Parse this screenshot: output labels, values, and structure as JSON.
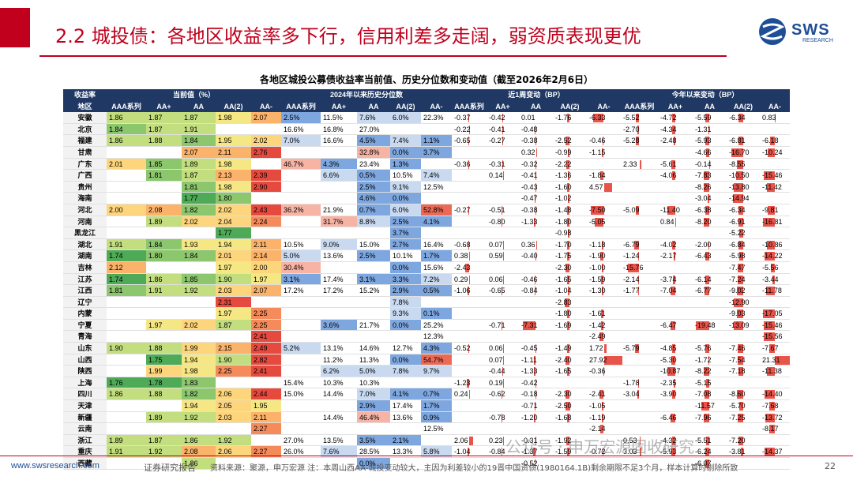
{
  "header": {
    "title": "2.2 城投债：各地区收益率多下行，信用利差多走阔，弱资质表现更优",
    "logo_text": "SWS",
    "logo_sub": "RESEARCH"
  },
  "table_title": "各地区城投公募债收益率当前值、历史分位数和变动值（截至2026年2月6日）",
  "group_headers": [
    "收益率",
    "当前值（%）",
    "2024年以来历史分位数",
    "近1周变动（BP）",
    "今年以来变动（BP）"
  ],
  "col_headers": [
    "地区",
    "AAA系列",
    "AA+",
    "AA",
    "AA(2)",
    "AA-",
    "AAA系列",
    "AA+",
    "AA",
    "AA(2)",
    "AA-",
    "AAA系列",
    "AA+",
    "AA",
    "AA(2)",
    "AA-",
    "AAA系列",
    "AA+",
    "AA",
    "AA(2)",
    "AA-"
  ],
  "rows": [
    {
      "region": "安徽",
      "cur": [
        "1.86",
        "1.87",
        "1.87",
        "1.98",
        "2.07"
      ],
      "pct": [
        "2.5%",
        "11.5%",
        "7.6%",
        "6.0%",
        "22.3%"
      ],
      "wk": [
        "-0.37",
        "-0.42",
        "0.01",
        "-1.76",
        "-6.33"
      ],
      "ytd": [
        "-5.52",
        "-4.72",
        "-5.59",
        "-6.34",
        "0.83"
      ]
    },
    {
      "region": "北京",
      "cur": [
        "1.84",
        "1.87",
        "1.91",
        "",
        ""
      ],
      "pct": [
        "16.6%",
        "16.8%",
        "27.0%",
        "",
        ""
      ],
      "wk": [
        "-0.22",
        "-0.41",
        "-0.48",
        "",
        ""
      ],
      "ytd": [
        "-2.70",
        "-4.34",
        "-1.31",
        "",
        ""
      ]
    },
    {
      "region": "福建",
      "cur": [
        "1.86",
        "1.88",
        "1.84",
        "1.95",
        "2.02"
      ],
      "pct": [
        "7.0%",
        "16.6%",
        "4.5%",
        "7.4%",
        "1.1%"
      ],
      "wk": [
        "-0.65",
        "-0.27",
        "-0.38",
        "-2.52",
        "-0.46"
      ],
      "ytd": [
        "-5.28",
        "-2.48",
        "-5.93",
        "-6.81",
        "-6.18"
      ]
    },
    {
      "region": "甘肃",
      "cur": [
        "",
        "",
        "2.07",
        "2.11",
        "2.76"
      ],
      "pct": [
        "",
        "",
        "32.8%",
        "0.0%",
        "3.7%"
      ],
      "wk": [
        "",
        "",
        "0.32",
        "-0.99",
        "-1.15"
      ],
      "ytd": [
        "",
        "",
        "-4.66",
        "-16.70",
        "-10.24"
      ]
    },
    {
      "region": "广东",
      "cur": [
        "2.01",
        "1.85",
        "1.89",
        "1.98",
        ""
      ],
      "pct": [
        "46.7%",
        "4.3%",
        "23.4%",
        "1.3%",
        ""
      ],
      "wk": [
        "-0.36",
        "-0.31",
        "-0.32",
        "-2.22",
        ""
      ],
      "ytd": [
        "2.33",
        "-5.61",
        "-0.14",
        "-8.55",
        ""
      ]
    },
    {
      "region": "广西",
      "cur": [
        "",
        "1.81",
        "1.87",
        "2.13",
        "2.39"
      ],
      "pct": [
        "",
        "6.6%",
        "0.5%",
        "10.5%",
        "7.4%"
      ],
      "wk": [
        "",
        "0.14",
        "-0.41",
        "-1.36",
        "-1.84"
      ],
      "ytd": [
        "",
        "-4.06",
        "-7.83",
        "-10.50",
        "-15.46"
      ]
    },
    {
      "region": "贵州",
      "cur": [
        "",
        "",
        "1.81",
        "1.98",
        "2.90"
      ],
      "pct": [
        "",
        "",
        "2.5%",
        "9.1%",
        "12.5%"
      ],
      "wk": [
        "",
        "",
        "-0.43",
        "-1.60",
        "4.57"
      ],
      "ytd": [
        "",
        "",
        "-8.26",
        "-13.80",
        "-11.42"
      ]
    },
    {
      "region": "海南",
      "cur": [
        "",
        "",
        "1.77",
        "1.80",
        ""
      ],
      "pct": [
        "",
        "",
        "4.6%",
        "0.0%",
        ""
      ],
      "wk": [
        "",
        "",
        "-0.47",
        "-1.02",
        ""
      ],
      "ytd": [
        "",
        "",
        "-3.04",
        "-14.94",
        ""
      ]
    },
    {
      "region": "河北",
      "cur": [
        "2.00",
        "2.08",
        "1.82",
        "2.02",
        "2.43"
      ],
      "pct": [
        "36.2%",
        "21.9%",
        "0.7%",
        "6.0%",
        "52.8%"
      ],
      "wk": [
        "-0.27",
        "-0.51",
        "-0.38",
        "-1.48",
        "-7.50"
      ],
      "ytd": [
        "-5.09",
        "-11.40",
        "-6.38",
        "-6.34",
        "-9.81"
      ]
    },
    {
      "region": "河南",
      "cur": [
        "",
        "1.89",
        "2.02",
        "2.04",
        "2.24"
      ],
      "pct": [
        "",
        "31.7%",
        "8.8%",
        "2.5%",
        "4.1%"
      ],
      "wk": [
        "",
        "-0.80",
        "-1.33",
        "-1.80",
        "-5.05"
      ],
      "ytd": [
        "",
        "0.84",
        "-8.20",
        "-6.91",
        "-16.81"
      ]
    },
    {
      "region": "黑龙江",
      "cur": [
        "",
        "",
        "",
        "1.77",
        ""
      ],
      "pct": [
        "",
        "",
        "",
        "3.7%",
        ""
      ],
      "wk": [
        "",
        "",
        "",
        "-0.98",
        ""
      ],
      "ytd": [
        "",
        "",
        "",
        "-5.22",
        ""
      ]
    },
    {
      "region": "湖北",
      "cur": [
        "1.91",
        "1.84",
        "1.93",
        "1.94",
        "2.11"
      ],
      "pct": [
        "10.5%",
        "9.0%",
        "15.0%",
        "2.7%",
        "16.4%"
      ],
      "wk": [
        "-0.68",
        "0.07",
        "0.36",
        "-1.70",
        "-1.18"
      ],
      "ytd": [
        "-6.79",
        "-4.02",
        "-2.00",
        "-6.84",
        "-10.86"
      ]
    },
    {
      "region": "湖南",
      "cur": [
        "1.74",
        "1.80",
        "1.84",
        "2.01",
        "2.14"
      ],
      "pct": [
        "5.0%",
        "13.6%",
        "2.5%",
        "10.1%",
        "1.7%"
      ],
      "wk": [
        "0.38",
        "0.59",
        "-0.40",
        "-1.75",
        "-1.90"
      ],
      "ytd": [
        "-1.24",
        "-2.17",
        "-6.43",
        "-5.98",
        "-14.22"
      ]
    },
    {
      "region": "吉林",
      "cur": [
        "2.12",
        "",
        "",
        "1.97",
        "2.00"
      ],
      "pct": [
        "30.4%",
        "",
        "",
        "0.0%",
        "15.6%"
      ],
      "wk": [
        "-2.43",
        "",
        "",
        "-2.30",
        "-1.00"
      ],
      "ytd": [
        "-15.76",
        "",
        "",
        "-7.47",
        "-5.56"
      ]
    },
    {
      "region": "江苏",
      "cur": [
        "1.74",
        "1.86",
        "1.85",
        "1.90",
        "1.97"
      ],
      "pct": [
        "3.1%",
        "17.4%",
        "3.1%",
        "3.3%",
        "7.2%"
      ],
      "wk": [
        "0.29",
        "0.06",
        "-0.46",
        "-1.65",
        "-1.59"
      ],
      "ytd": [
        "-2.14",
        "-3.74",
        "-6.14",
        "-7.24",
        "-3.44"
      ]
    },
    {
      "region": "江西",
      "cur": [
        "1.81",
        "1.91",
        "1.92",
        "2.03",
        "2.07"
      ],
      "pct": [
        "17.2%",
        "17.2%",
        "15.2%",
        "2.9%",
        "0.5%"
      ],
      "wk": [
        "-1.06",
        "-0.65",
        "-0.84",
        "-1.04",
        "-1.30"
      ],
      "ytd": [
        "-1.77",
        "-7.04",
        "-6.77",
        "-9.02",
        "-11.78"
      ]
    },
    {
      "region": "辽宁",
      "cur": [
        "",
        "",
        "",
        "2.31",
        ""
      ],
      "pct": [
        "",
        "",
        "",
        "7.8%",
        ""
      ],
      "wk": [
        "",
        "",
        "",
        "-2.83",
        ""
      ],
      "ytd": [
        "",
        "",
        "",
        "-12.90",
        ""
      ]
    },
    {
      "region": "内蒙",
      "cur": [
        "",
        "",
        "",
        "1.97",
        "2.25"
      ],
      "pct": [
        "",
        "",
        "",
        "9.3%",
        "0.1%"
      ],
      "wk": [
        "",
        "",
        "",
        "-1.80",
        "-1.61"
      ],
      "ytd": [
        "",
        "",
        "",
        "-9.03",
        "-17.05"
      ]
    },
    {
      "region": "宁夏",
      "cur": [
        "",
        "1.97",
        "2.02",
        "1.87",
        "2.25"
      ],
      "pct": [
        "",
        "3.6%",
        "21.7%",
        "0.0%",
        "25.2%"
      ],
      "wk": [
        "",
        "-0.71",
        "-7.31",
        "-1.69",
        "-1.42"
      ],
      "ytd": [
        "",
        "-6.47",
        "-19.48",
        "-13.09",
        "-15.46"
      ]
    },
    {
      "region": "青海",
      "cur": [
        "",
        "",
        "",
        "",
        "2.41"
      ],
      "pct": [
        "",
        "",
        "",
        "",
        "12.3%"
      ],
      "wk": [
        "",
        "",
        "",
        "",
        "-2.49"
      ],
      "ytd": [
        "",
        "",
        "",
        "",
        "-15.56"
      ]
    },
    {
      "region": "山东",
      "cur": [
        "1.90",
        "1.88",
        "1.99",
        "2.15",
        "2.49"
      ],
      "pct": [
        "5.2%",
        "13.1%",
        "14.6%",
        "12.7%",
        "4.3%"
      ],
      "wk": [
        "-0.52",
        "0.06",
        "-0.45",
        "-1.49",
        "1.72"
      ],
      "ytd": [
        "-5.79",
        "-4.85",
        "-5.76",
        "-7.46",
        "-7.67"
      ]
    },
    {
      "region": "山西",
      "cur": [
        "",
        "1.75",
        "1.94",
        "1.90",
        "2.82"
      ],
      "pct": [
        "",
        "11.2%",
        "11.3%",
        "0.0%",
        "54.7%"
      ],
      "wk": [
        "",
        "0.07",
        "-1.11",
        "-2.40",
        "27.92"
      ],
      "ytd": [
        "",
        "-5.30",
        "-1.72",
        "-7.54",
        "21.31"
      ]
    },
    {
      "region": "陕西",
      "cur": [
        "",
        "1.99",
        "1.98",
        "2.25",
        "2.41"
      ],
      "pct": [
        "",
        "6.2%",
        "5.0%",
        "7.8%",
        "9.7%"
      ],
      "wk": [
        "",
        "-0.44",
        "-1.33",
        "-1.65",
        "-0.36"
      ],
      "ytd": [
        "",
        "-10.87",
        "-8.22",
        "-7.18",
        "-11.38"
      ]
    },
    {
      "region": "上海",
      "cur": [
        "1.76",
        "1.78",
        "1.83",
        "",
        ""
      ],
      "pct": [
        "15.4%",
        "10.3%",
        "10.3%",
        "",
        ""
      ],
      "wk": [
        "-1.23",
        "0.19",
        "-0.42",
        "",
        ""
      ],
      "ytd": [
        "-1.78",
        "-2.35",
        "-5.15",
        "",
        ""
      ]
    },
    {
      "region": "四川",
      "cur": [
        "1.86",
        "1.88",
        "1.82",
        "2.06",
        "2.44"
      ],
      "pct": [
        "15.0%",
        "14.4%",
        "7.0%",
        "4.1%",
        "0.7%"
      ],
      "wk": [
        "0.24",
        "-0.62",
        "-0.18",
        "-2.30",
        "-2.41"
      ],
      "ytd": [
        "-3.04",
        "-3.90",
        "-7.08",
        "-8.60",
        "-14.40"
      ]
    },
    {
      "region": "天津",
      "cur": [
        "",
        "",
        "1.94",
        "2.05",
        "1.95"
      ],
      "pct": [
        "",
        "",
        "2.9%",
        "17.4%",
        "1.7%"
      ],
      "wk": [
        "",
        "",
        "-0.71",
        "-2.50",
        "-1.05"
      ],
      "ytd": [
        "",
        "",
        "-11.57",
        "-5.70",
        "-7.68"
      ]
    },
    {
      "region": "新疆",
      "cur": [
        "",
        "1.89",
        "1.92",
        "2.03",
        "2.11"
      ],
      "pct": [
        "",
        "14.4%",
        "46.4%",
        "13.6%",
        "0.9%"
      ],
      "wk": [
        "",
        "-0.78",
        "-1.20",
        "-1.68",
        "-1.19"
      ],
      "ytd": [
        "",
        "-6.46",
        "-7.96",
        "-7.25",
        "-13.72"
      ]
    },
    {
      "region": "云南",
      "cur": [
        "",
        "",
        "",
        "",
        "2.27"
      ],
      "pct": [
        "",
        "",
        "",
        "",
        "12.5%"
      ],
      "wk": [
        "",
        "",
        "",
        "",
        "-2.14"
      ],
      "ytd": [
        "",
        "",
        "",
        "",
        "-8.17"
      ]
    },
    {
      "region": "浙江",
      "cur": [
        "1.89",
        "1.87",
        "1.86",
        "1.92",
        ""
      ],
      "pct": [
        "27.0%",
        "13.5%",
        "3.5%",
        "2.1%",
        ""
      ],
      "wk": [
        "2.06",
        "0.23",
        "-0.31",
        "-1.92",
        ""
      ],
      "ytd": [
        "0.53",
        "-4.32",
        "-5.51",
        "-7.20",
        ""
      ]
    },
    {
      "region": "重庆",
      "cur": [
        "1.91",
        "1.92",
        "2.08",
        "2.06",
        "2.27"
      ],
      "pct": [
        "26.0%",
        "7.6%",
        "28.5%",
        "13.3%",
        "5.8%"
      ],
      "wk": [
        "-1.04",
        "-0.84",
        "-1.37",
        "-1.59",
        "-0.72"
      ],
      "ytd": [
        "3.03",
        "-5.93",
        "-6.24",
        "-3.81",
        "-14.37"
      ]
    },
    {
      "region": "西藏",
      "cur": [
        "",
        "",
        "1.86",
        "",
        ""
      ],
      "pct": [
        "",
        "",
        "0.0%",
        "",
        ""
      ],
      "wk": [
        "",
        "",
        "-0.52",
        "",
        ""
      ],
      "ytd": [
        "",
        "",
        "-6.07",
        "",
        ""
      ]
    }
  ],
  "footer": {
    "url": "www.swsresearch.com",
    "label": "证券研究报告",
    "source": "资料来源：聚源，申万宏源 注：本周山西AA-城投变动较大，主因为利差较小的19晋中国资债(1980164.1B)剩余期限不足3个月，样本计算时剔除所致",
    "page": "22",
    "watermark": "公众号 · 申万宏源固收研究"
  },
  "colors": {
    "brand_red": "#c0001c",
    "header_navy": "#1f3864",
    "logo_blue": "#1f4e97",
    "bar_red": "#e8534a"
  }
}
